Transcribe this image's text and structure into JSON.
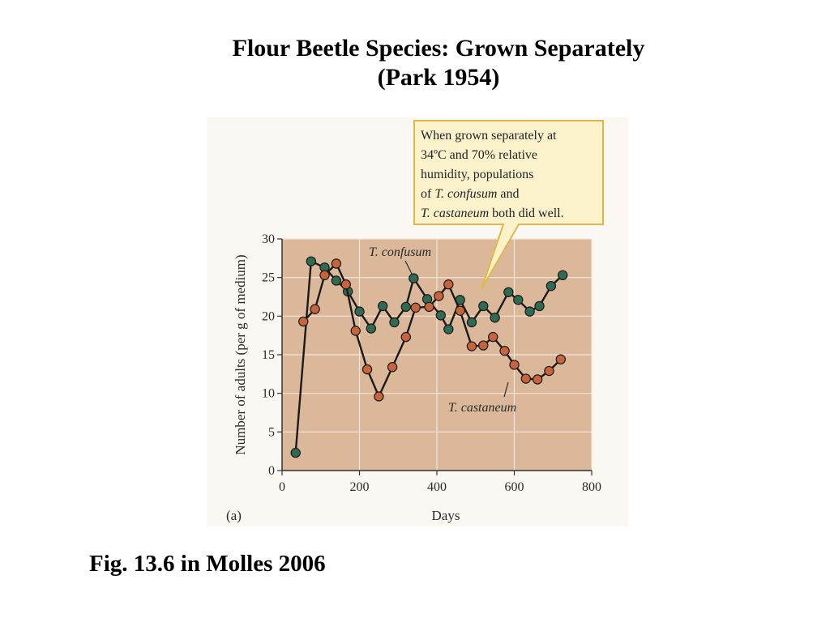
{
  "slide": {
    "title_line1": "Flour Beetle Species: Grown Separately",
    "title_line2": "(Park 1954)",
    "caption": "Fig. 13.6 in Molles 2006"
  },
  "callout": {
    "lines": [
      [
        {
          "text": "When grown separately at",
          "italic": false
        }
      ],
      [
        {
          "text": "34ºC and 70% relative",
          "italic": false
        }
      ],
      [
        {
          "text": "humidity, populations",
          "italic": false
        }
      ],
      [
        {
          "text": "of ",
          "italic": false
        },
        {
          "text": "T. confusum",
          "italic": true
        },
        {
          "text": " and",
          "italic": false
        }
      ],
      [
        {
          "text": "T. castaneum",
          "italic": true
        },
        {
          "text": " both did well.",
          "italic": false
        }
      ]
    ]
  },
  "colors": {
    "plot_bg": "#dcb89a",
    "gridline": "#f4e6da",
    "confusum": "#2f6b52",
    "castaneum": "#c8643c",
    "line": "#1a1a1a",
    "callout_bg": "#fbf2cc",
    "callout_border": "#e0b84a"
  },
  "chart_data": {
    "type": "line",
    "panel_label": "(a)",
    "xlabel": "Days",
    "ylabel": "Number of adults (per g of medium)",
    "xlim": [
      0,
      800
    ],
    "ylim": [
      0,
      30
    ],
    "xticks": [
      0,
      200,
      400,
      600,
      800
    ],
    "yticks": [
      0,
      5,
      10,
      15,
      20,
      25,
      30
    ],
    "grid": true,
    "series": [
      {
        "name": "T. confusum",
        "color": "#2f6b52",
        "x": [
          35,
          75,
          110,
          140,
          170,
          200,
          230,
          260,
          290,
          320,
          340,
          375,
          410,
          430,
          460,
          490,
          520,
          550,
          585,
          610,
          640,
          665,
          695,
          725
        ],
        "y": [
          2.3,
          27.1,
          26.3,
          24.6,
          23.2,
          20.6,
          18.4,
          21.3,
          19.2,
          21.2,
          24.9,
          22.2,
          20.1,
          18.3,
          22.1,
          19.2,
          21.3,
          19.8,
          23.1,
          22.1,
          20.6,
          21.3,
          23.9,
          25.3
        ]
      },
      {
        "name": "T. castaneum",
        "color": "#c8643c",
        "x": [
          55,
          85,
          110,
          140,
          165,
          190,
          220,
          250,
          285,
          320,
          345,
          380,
          405,
          430,
          460,
          490,
          520,
          545,
          575,
          600,
          630,
          660,
          690,
          720
        ],
        "y": [
          19.3,
          20.9,
          25.3,
          26.8,
          24.1,
          18.1,
          13.1,
          9.6,
          13.4,
          17.3,
          21.1,
          21.2,
          22.6,
          24.1,
          20.7,
          16.1,
          16.2,
          17.3,
          15.5,
          13.7,
          11.9,
          11.8,
          12.9,
          14.4
        ]
      }
    ]
  }
}
